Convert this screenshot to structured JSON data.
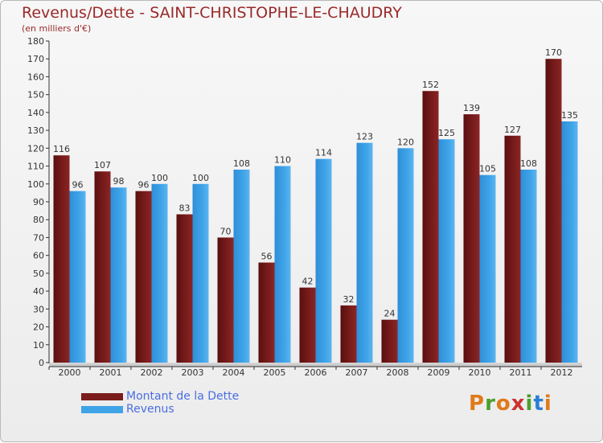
{
  "header": {
    "title": "Revenus/Dette - SAINT-CHRISTOPHE-LE-CHAUDRY",
    "subtitle": "(en milliers d'€)"
  },
  "legend": {
    "dette_label": "Montant de la Dette",
    "revenus_label": "Revenus"
  },
  "colors": {
    "dette": "#7a1c1c",
    "revenus": "#3fa3e8",
    "legend_text": "#4a6ee0",
    "title": "#9a2a2a"
  },
  "logo": {
    "text": "Proxiti",
    "letter_colors": [
      "#e07a1a",
      "#4aa02c",
      "#e07a1a",
      "#c33",
      "#4aa02c",
      "#2a7fd4",
      "#e07a1a"
    ]
  },
  "chart_data": {
    "type": "bar",
    "title": "Revenus/Dette - SAINT-CHRISTOPHE-LE-CHAUDRY",
    "subtitle": "(en milliers d'€)",
    "categories": [
      "2000",
      "2001",
      "2002",
      "2003",
      "2004",
      "2005",
      "2006",
      "2007",
      "2008",
      "2009",
      "2010",
      "2011",
      "2012"
    ],
    "series": [
      {
        "name": "Montant de la Dette",
        "values": [
          116,
          107,
          96,
          83,
          70,
          56,
          42,
          32,
          24,
          152,
          139,
          127,
          170
        ]
      },
      {
        "name": "Revenus",
        "values": [
          96,
          98,
          100,
          100,
          108,
          110,
          114,
          123,
          120,
          125,
          105,
          108,
          135
        ]
      }
    ],
    "ylim": [
      0,
      180
    ],
    "ytick_step": 10,
    "grid": false,
    "legend_position": "bottom-left"
  }
}
